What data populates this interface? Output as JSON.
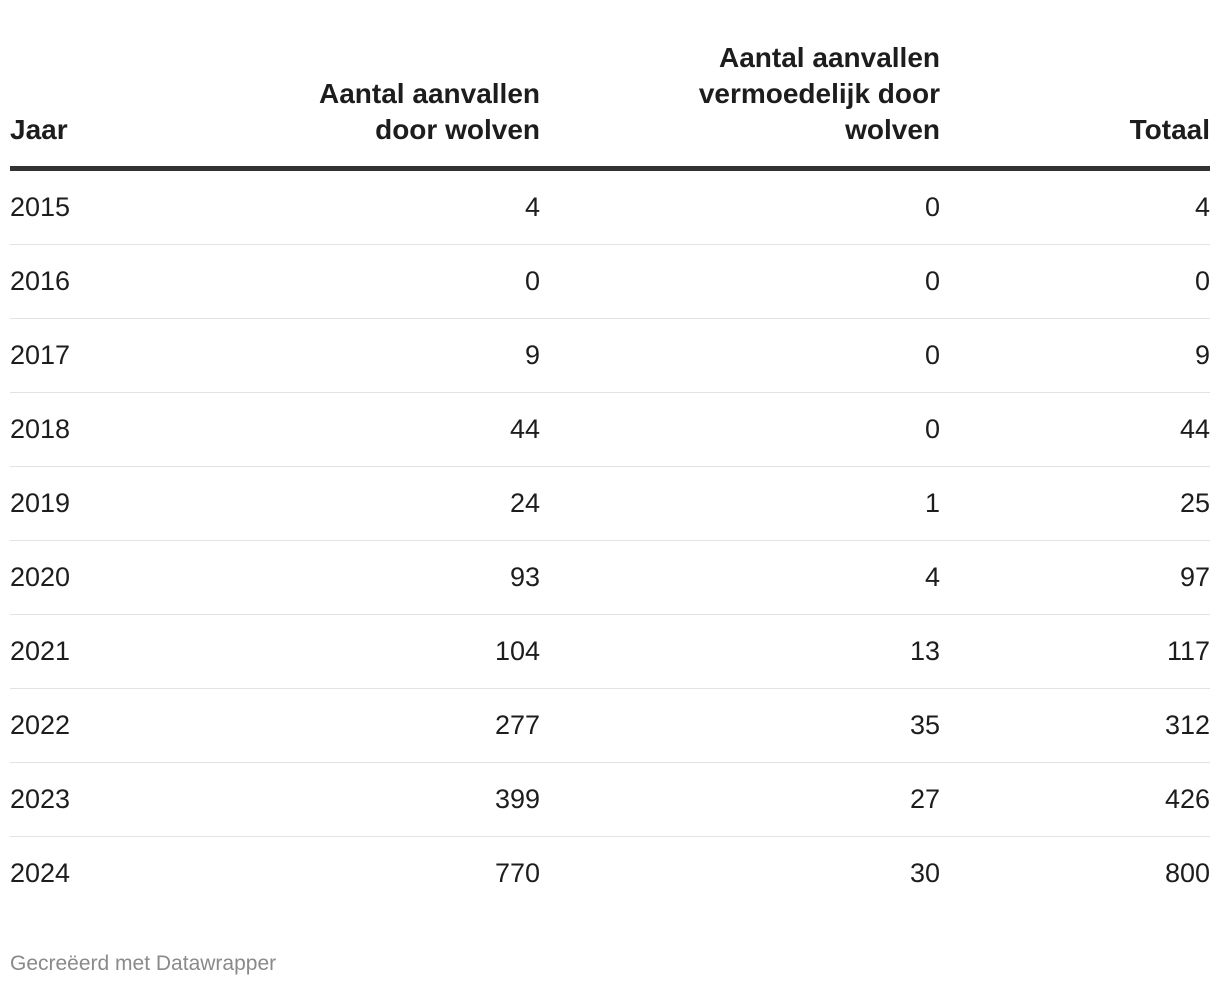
{
  "chart_data": {
    "type": "table",
    "columns": [
      "Jaar",
      "Aantal aanvallen door wolven",
      "Aantal aanvallen vermoedelijk door wolven",
      "Totaal"
    ],
    "header_lines": [
      [
        "Jaar"
      ],
      [
        "Aantal aanvallen",
        "door wolven"
      ],
      [
        "Aantal aanvallen",
        "vermoedelijk door",
        "wolven"
      ],
      [
        "Totaal"
      ]
    ],
    "rows": [
      [
        "2015",
        "4",
        "0",
        "4"
      ],
      [
        "2016",
        "0",
        "0",
        "0"
      ],
      [
        "2017",
        "9",
        "0",
        "9"
      ],
      [
        "2018",
        "44",
        "0",
        "44"
      ],
      [
        "2019",
        "24",
        "1",
        "25"
      ],
      [
        "2020",
        "93",
        "4",
        "97"
      ],
      [
        "2021",
        "104",
        "13",
        "117"
      ],
      [
        "2022",
        "277",
        "35",
        "312"
      ],
      [
        "2023",
        "399",
        "27",
        "426"
      ],
      [
        "2024",
        "770",
        "30",
        "800"
      ]
    ]
  },
  "footer": {
    "credit": "Gecreëerd met Datawrapper"
  }
}
